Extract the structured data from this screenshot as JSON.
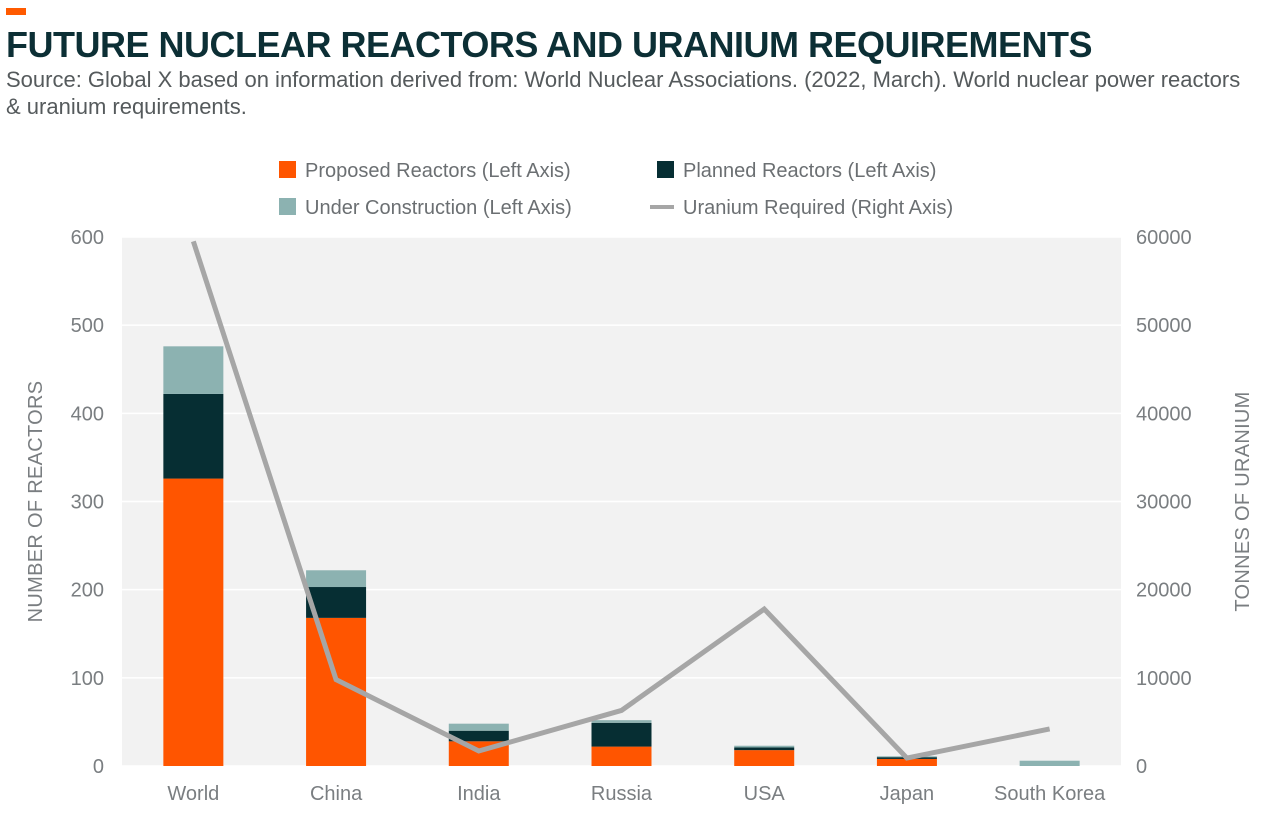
{
  "header": {
    "title": "FUTURE NUCLEAR REACTORS AND URANIUM REQUIREMENTS",
    "subtitle": "Source: Global X based on information derived from: World Nuclear Associations. (2022, March). World nuclear power reactors & uranium requirements."
  },
  "colors": {
    "accent": "#ff5a00",
    "proposed": "#ff5500",
    "planned": "#062e33",
    "under_construction": "#8cb2b1",
    "uranium": "#a6a6a6",
    "plot_bg": "#f2f2f2",
    "grid": "#ffffff"
  },
  "chart_data": {
    "type": "bar",
    "stacked": true,
    "categories": [
      "World",
      "China",
      "India",
      "Russia",
      "USA",
      "Japan",
      "South Korea"
    ],
    "series": [
      {
        "name": "Proposed Reactors (Left Axis)",
        "axis": "left",
        "values": [
          326,
          168,
          28,
          22,
          18,
          8,
          0
        ]
      },
      {
        "name": "Planned Reactors (Left Axis)",
        "axis": "left",
        "values": [
          96,
          35,
          12,
          27,
          3,
          2,
          0
        ]
      },
      {
        "name": "Under Construction (Left Axis)",
        "axis": "left",
        "values": [
          54,
          19,
          8,
          3,
          2,
          1,
          6
        ]
      },
      {
        "name": "Uranium Required (Right Axis)",
        "axis": "right",
        "type": "line",
        "values": [
          59500,
          9800,
          1700,
          6300,
          17800,
          900,
          4200
        ]
      }
    ],
    "legend_order": [
      0,
      1,
      2,
      3
    ],
    "legend_position": "top",
    "ylabel": "NUMBER OF REACTORS",
    "y2label": "TONNES OF URANIUM",
    "ylim": [
      0,
      600
    ],
    "y2lim": [
      0,
      60000
    ],
    "yticks": [
      "0",
      "100",
      "200",
      "300",
      "400",
      "500",
      "600"
    ],
    "y2ticks": [
      "0",
      "10000",
      "20000",
      "30000",
      "40000",
      "50000",
      "60000"
    ],
    "grid": true
  }
}
